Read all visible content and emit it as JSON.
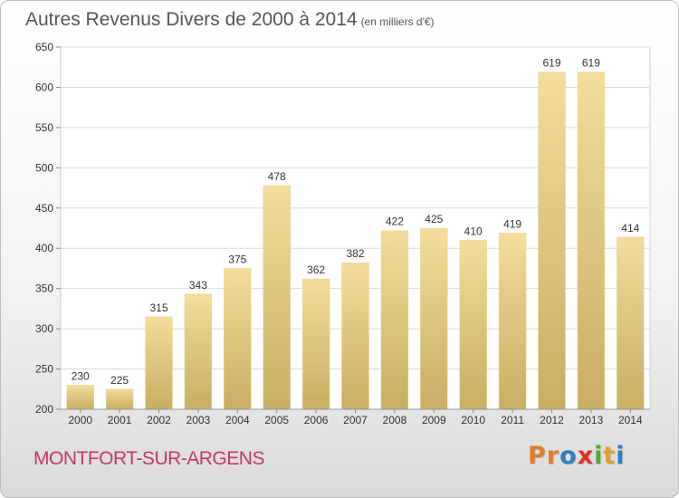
{
  "title": "Autres Revenus Divers de 2000 à 2014",
  "subtitle": "(en milliers d'€)",
  "commune": "MONTFORT-SUR-ARGENS",
  "brand": {
    "letters": [
      "P",
      "r",
      "o",
      "x",
      "i",
      "t",
      "i"
    ],
    "colors": [
      "#e07f2a",
      "#e07f2a",
      "#2f7fc1",
      "#e0302a",
      "#58a832",
      "#e0a02a",
      "#2f7fc1"
    ]
  },
  "colors": {
    "bar_top": "#f4dd9a",
    "bar_bottom": "#c9ad62",
    "grid": "#dcdcdc",
    "axis_text": "#333333",
    "title": "#555555",
    "commune": "#c4386a"
  },
  "chart_data": {
    "type": "bar",
    "categories": [
      "2000",
      "2001",
      "2002",
      "2003",
      "2004",
      "2005",
      "2006",
      "2007",
      "2008",
      "2009",
      "2010",
      "2011",
      "2012",
      "2013",
      "2014"
    ],
    "values": [
      230,
      225,
      315,
      343,
      375,
      478,
      362,
      382,
      422,
      425,
      410,
      419,
      619,
      619,
      414
    ],
    "ylim": [
      200,
      650
    ],
    "yticks": [
      200,
      250,
      300,
      350,
      400,
      450,
      500,
      550,
      600,
      650
    ],
    "grid": true,
    "data_labels": true
  }
}
